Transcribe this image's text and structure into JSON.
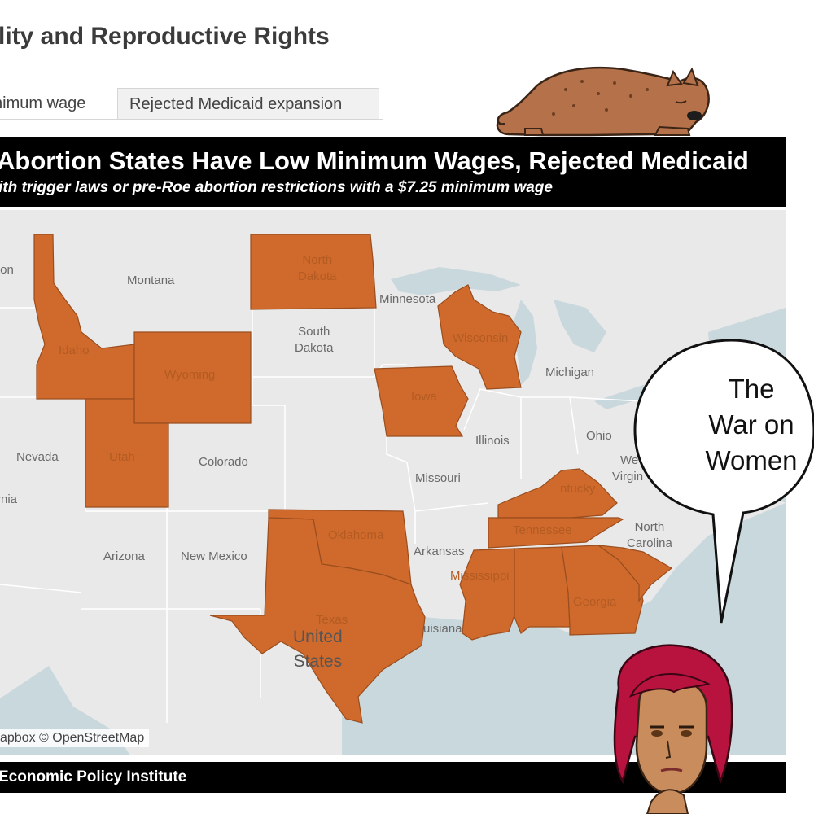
{
  "header": {
    "title": "lity and Reproductive Rights"
  },
  "tabs": [
    {
      "label": "nimum wage"
    },
    {
      "label": "Rejected Medicaid expansion"
    }
  ],
  "chart": {
    "title": "Abortion States Have Low Minimum Wages, Rejected Medicaid",
    "subtitle": "ith trigger laws or pre-Roe abortion restrictions with a $7.25 minimum wage",
    "attribution": "apbox © OpenStreetMap",
    "source": "Economic Policy Institute",
    "highlight_color": "#cf6a2c",
    "base_color": "#e9e9e9",
    "water_color": "#c9d8dd"
  },
  "map": {
    "country_label": [
      "United",
      "States"
    ],
    "highlighted_states": [
      "Idaho",
      "Wyoming",
      "Utah",
      "North Dakota",
      "Wisconsin",
      "Iowa",
      "Oklahoma",
      "Texas",
      "Kentucky",
      "Tennessee",
      "Mississippi",
      "Alabama",
      "Georgia",
      "South Carolina"
    ],
    "labels": {
      "washington": "ton",
      "montana": "Montana",
      "idaho": "Idaho",
      "wyoming": "Wyoming",
      "north_dakota": [
        "North",
        "Dakota"
      ],
      "south_dakota": [
        "South",
        "Dakota"
      ],
      "minnesota": "Minnesota",
      "wisconsin": "Wisconsin",
      "michigan": "Michigan",
      "iowa": "Iowa",
      "illinois": "Illinois",
      "ohio": "Ohio",
      "nevada": "Nevada",
      "utah": "Utah",
      "colorado": "Colorado",
      "missouri": "Missouri",
      "california": "rnia",
      "west_virginia": [
        "We",
        "Virgin"
      ],
      "kentucky": "ntucky",
      "north_carolina": [
        "North",
        "Carolina"
      ],
      "oklahoma": "Oklahoma",
      "tennessee": "Tennessee",
      "arkansas": "Arkansas",
      "arizona": "Arizona",
      "new_mexico": "New Mexico",
      "mississippi": "Mississippi",
      "texas": "Texas",
      "georgia": "Georgia",
      "louisiana": "uisiana"
    }
  },
  "comic": {
    "speech_bubble": [
      "The",
      "War on",
      "Women"
    ]
  }
}
